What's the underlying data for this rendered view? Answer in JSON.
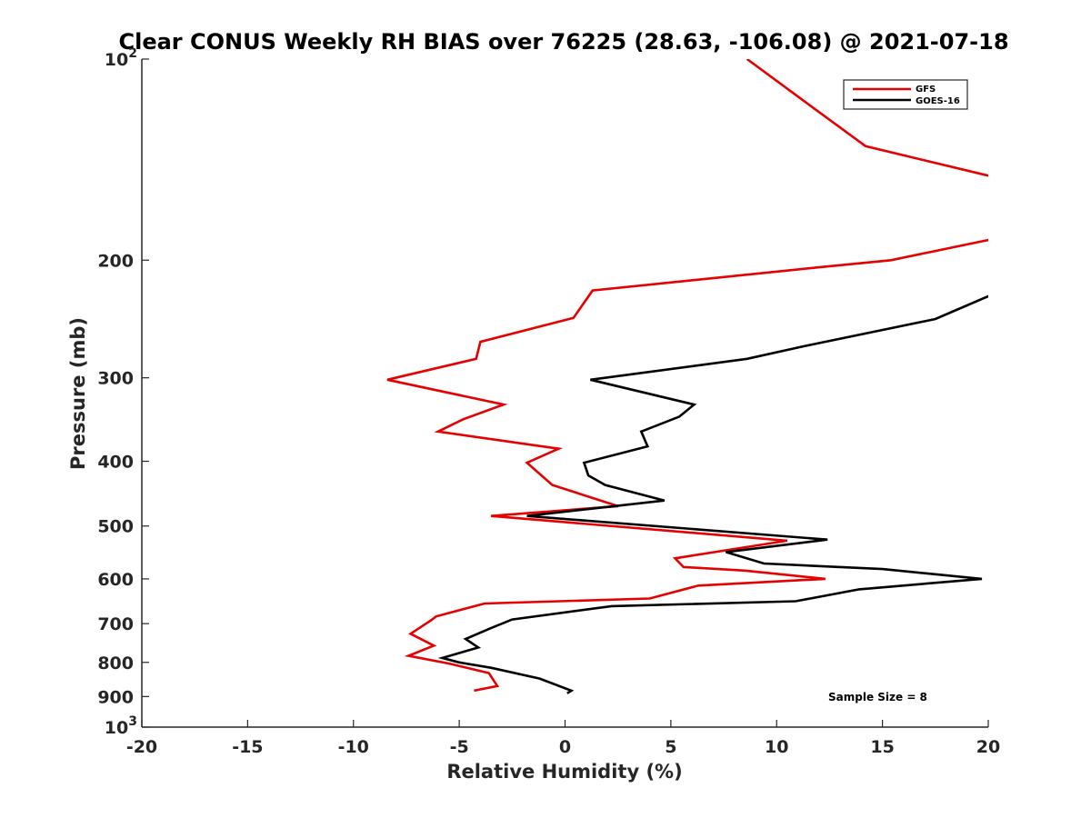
{
  "chart_data": {
    "type": "line",
    "title": "Clear CONUS Weekly RH BIAS over 76225 (28.63, -106.08) @ 2021-07-18",
    "xlabel": "Relative Humidity (%)",
    "ylabel": "Pressure (mb)",
    "xlim": [
      -20,
      20
    ],
    "ylim": [
      100,
      1000
    ],
    "y_scale": "log",
    "y_reversed": true,
    "grid": false,
    "legend_position": "top-right",
    "x_ticks": [
      "-20",
      "-15",
      "-10",
      "-5",
      "0",
      "5",
      "10",
      "15",
      "20"
    ],
    "y_ticks": [
      {
        "value": 100,
        "base": "10",
        "exp": "2"
      },
      {
        "value": 200,
        "base": "200",
        "exp": ""
      },
      {
        "value": 300,
        "base": "300",
        "exp": ""
      },
      {
        "value": 400,
        "base": "400",
        "exp": ""
      },
      {
        "value": 500,
        "base": "500",
        "exp": ""
      },
      {
        "value": 600,
        "base": "600",
        "exp": ""
      },
      {
        "value": 700,
        "base": "700",
        "exp": ""
      },
      {
        "value": 800,
        "base": "800",
        "exp": ""
      },
      {
        "value": 900,
        "base": "900",
        "exp": ""
      },
      {
        "value": 1000,
        "base": "10",
        "exp": "3"
      }
    ],
    "annotation": "Sample Size = 8",
    "series": [
      {
        "name": "GFS",
        "color": "#e60000",
        "points": [
          [
            8.6,
            100
          ],
          [
            11.2,
            115
          ],
          [
            14.2,
            135
          ],
          [
            20.2,
            150
          ],
          [
            20.2,
            186
          ],
          [
            15.4,
            200
          ],
          [
            12.0,
            205
          ],
          [
            1.3,
            222
          ],
          [
            0.4,
            244
          ],
          [
            -4.0,
            265
          ],
          [
            -4.2,
            281
          ],
          [
            -8.4,
            302
          ],
          [
            -2.9,
            329
          ],
          [
            -4.8,
            346
          ],
          [
            -6.0,
            361
          ],
          [
            -0.3,
            383
          ],
          [
            -1.8,
            402
          ],
          [
            -0.6,
            434
          ],
          [
            2.5,
            467
          ],
          [
            -3.5,
            483
          ],
          [
            10.5,
            526
          ],
          [
            5.2,
            559
          ],
          [
            5.6,
            576
          ],
          [
            8.5,
            583
          ],
          [
            12.3,
            600
          ],
          [
            6.3,
            614
          ],
          [
            4.0,
            642
          ],
          [
            -3.8,
            653
          ],
          [
            -5.2,
            671
          ],
          [
            -6.1,
            683
          ],
          [
            -6.3,
            691
          ],
          [
            -7.3,
            725
          ],
          [
            -6.2,
            755
          ],
          [
            -7.4,
            782
          ],
          [
            -5.5,
            803
          ],
          [
            -3.6,
            830
          ],
          [
            -3.2,
            868
          ],
          [
            -4.3,
            882
          ]
        ]
      },
      {
        "name": "GOES-16",
        "color": "#000000",
        "points": [
          [
            20.2,
            225
          ],
          [
            17.5,
            245
          ],
          [
            11.3,
            269
          ],
          [
            8.6,
            281
          ],
          [
            1.2,
            302
          ],
          [
            6.1,
            329
          ],
          [
            5.4,
            343
          ],
          [
            3.6,
            361
          ],
          [
            3.9,
            380
          ],
          [
            0.9,
            402
          ],
          [
            1.1,
            420
          ],
          [
            1.9,
            434
          ],
          [
            4.7,
            458
          ],
          [
            -1.8,
            483
          ],
          [
            12.4,
            524
          ],
          [
            7.6,
            547
          ],
          [
            9.4,
            569
          ],
          [
            15.0,
            580
          ],
          [
            19.7,
            600
          ],
          [
            13.9,
            622
          ],
          [
            10.9,
            648
          ],
          [
            2.2,
            659
          ],
          [
            -2.5,
            690
          ],
          [
            -3.5,
            711
          ],
          [
            -4.7,
            738
          ],
          [
            -4.1,
            760
          ],
          [
            -5.8,
            788
          ],
          [
            -5.0,
            800
          ],
          [
            -3.5,
            815
          ],
          [
            -1.2,
            846
          ],
          [
            0.3,
            882
          ],
          [
            0.1,
            890
          ]
        ]
      }
    ]
  }
}
